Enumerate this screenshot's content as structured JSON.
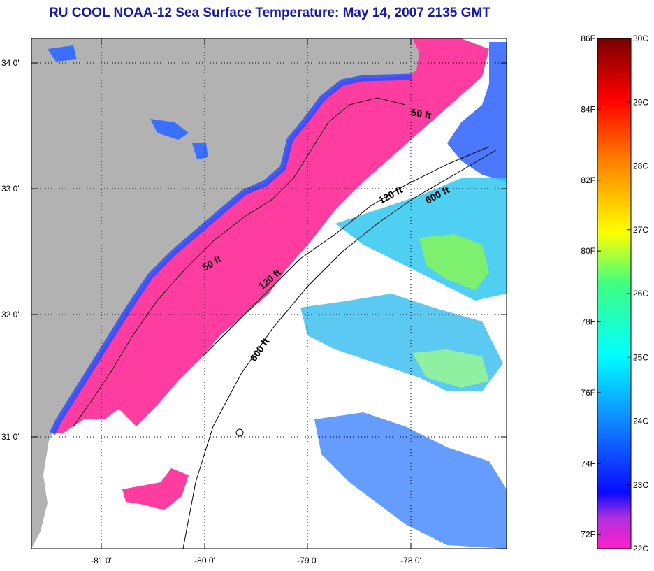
{
  "title": "RU COOL  NOAA-12  Sea Surface Temperature:  May 14, 2007 2135 GMT",
  "lat_labels": [
    "34 0'",
    "33 0'",
    "32 0'",
    "31 0'"
  ],
  "lon_labels": [
    "-81 0'",
    "-80 0'",
    "-79 0'",
    "-78 0'"
  ],
  "isobaths": [
    "50 ft",
    "120 ft",
    "600 ft",
    "50 ft",
    "120 ft",
    "600 ft"
  ],
  "colorbar": {
    "fahrenheit": [
      "86F",
      "84F",
      "82F",
      "80F",
      "78F",
      "76F",
      "74F",
      "72F"
    ],
    "celsius": [
      "30C",
      "29C",
      "28C",
      "27C",
      "26C",
      "25C",
      "24C",
      "23C",
      "22C"
    ]
  },
  "colors": {
    "land": "#b2b2b2",
    "nearshore_water": "#ff3ca0",
    "cloud": "#ffffff",
    "title_text": "#1a1aa8"
  }
}
